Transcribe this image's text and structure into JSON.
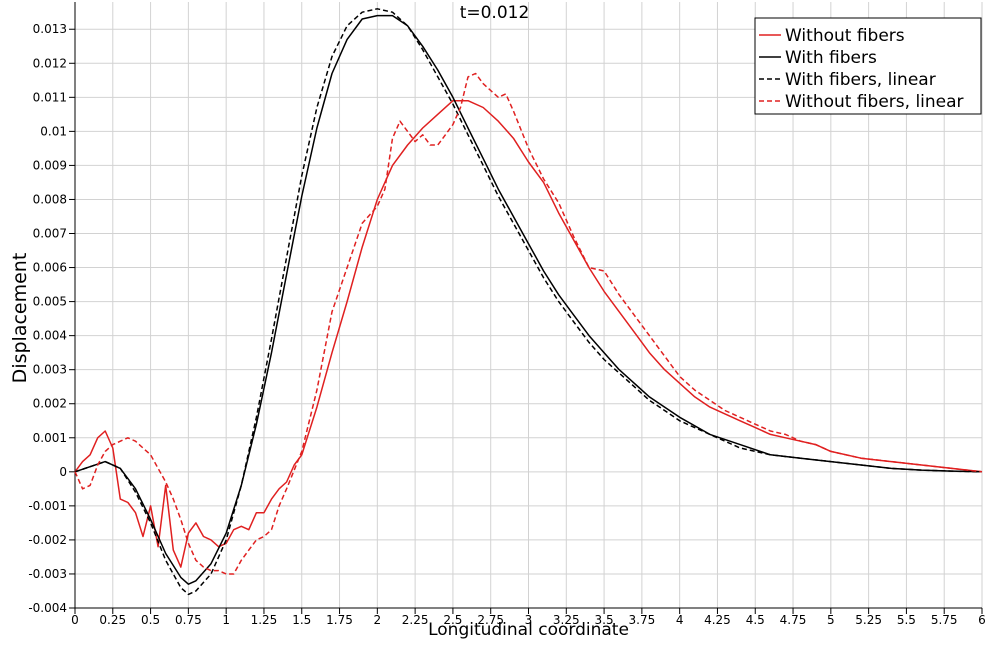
{
  "chart_data": {
    "type": "line",
    "title": "t=0.012",
    "xlabel": "Longitudinal coordinate",
    "ylabel": "Displacement",
    "xlim": [
      0,
      6
    ],
    "ylim": [
      -0.004,
      0.0138
    ],
    "grid": true,
    "legend_position": "top-right",
    "x_ticks": [
      "0",
      "0.25",
      "0.5",
      "0.75",
      "1",
      "1.25",
      "1.5",
      "1.75",
      "2",
      "2.25",
      "2.5",
      "2.75",
      "3",
      "3.25",
      "3.5",
      "3.75",
      "4",
      "4.25",
      "4.5",
      "4.75",
      "5",
      "5.25",
      "5.5",
      "5.75",
      "6"
    ],
    "y_ticks": [
      "-0.004",
      "-0.003",
      "-0.002",
      "-0.001",
      "0",
      "0.001",
      "0.002",
      "0.003",
      "0.004",
      "0.005",
      "0.006",
      "0.007",
      "0.008",
      "0.009",
      "0.01",
      "0.011",
      "0.012",
      "0.013"
    ],
    "series": [
      {
        "name": "Without fibers",
        "color": "#e02020",
        "dash": "solid",
        "x": [
          0,
          0.05,
          0.1,
          0.15,
          0.2,
          0.25,
          0.3,
          0.35,
          0.4,
          0.45,
          0.5,
          0.55,
          0.6,
          0.65,
          0.7,
          0.75,
          0.8,
          0.85,
          0.9,
          0.95,
          1,
          1.05,
          1.1,
          1.15,
          1.2,
          1.25,
          1.3,
          1.35,
          1.4,
          1.45,
          1.5,
          1.6,
          1.7,
          1.8,
          1.9,
          2,
          2.1,
          2.2,
          2.3,
          2.4,
          2.5,
          2.6,
          2.7,
          2.8,
          2.9,
          3,
          3.1,
          3.2,
          3.3,
          3.4,
          3.5,
          3.6,
          3.7,
          3.8,
          3.9,
          4,
          4.1,
          4.2,
          4.3,
          4.4,
          4.5,
          4.6,
          4.7,
          4.8,
          4.9,
          5,
          5.2,
          5.4,
          5.6,
          5.8,
          6
        ],
        "y": [
          0,
          0.0003,
          0.0005,
          0.001,
          0.0012,
          0.0007,
          -0.0008,
          -0.0009,
          -0.0012,
          -0.0019,
          -0.001,
          -0.0022,
          -0.0004,
          -0.0023,
          -0.0028,
          -0.0018,
          -0.0015,
          -0.0019,
          -0.002,
          -0.0022,
          -0.0021,
          -0.0017,
          -0.0016,
          -0.0017,
          -0.0012,
          -0.0012,
          -0.0008,
          -0.0005,
          -0.0003,
          0.0002,
          0.0005,
          0.0019,
          0.0035,
          0.005,
          0.0066,
          0.008,
          0.009,
          0.0096,
          0.0101,
          0.0105,
          0.0109,
          0.0109,
          0.0107,
          0.0103,
          0.0098,
          0.0091,
          0.0085,
          0.0076,
          0.0068,
          0.006,
          0.0053,
          0.0047,
          0.0041,
          0.0035,
          0.003,
          0.0026,
          0.0022,
          0.0019,
          0.0017,
          0.0015,
          0.0013,
          0.0011,
          0.001,
          0.0009,
          0.0008,
          0.0006,
          0.0004,
          0.0003,
          0.0002,
          0.0001,
          0
        ]
      },
      {
        "name": "With fibers",
        "color": "#000000",
        "dash": "solid",
        "x": [
          0,
          0.1,
          0.2,
          0.3,
          0.4,
          0.5,
          0.6,
          0.7,
          0.75,
          0.8,
          0.9,
          1,
          1.1,
          1.2,
          1.3,
          1.4,
          1.5,
          1.6,
          1.7,
          1.8,
          1.9,
          2,
          2.1,
          2.2,
          2.3,
          2.4,
          2.5,
          2.6,
          2.7,
          2.8,
          2.9,
          3,
          3.1,
          3.2,
          3.3,
          3.4,
          3.5,
          3.6,
          3.7,
          3.8,
          3.9,
          4,
          4.2,
          4.4,
          4.6,
          4.8,
          5,
          5.2,
          5.4,
          5.6,
          5.8,
          6
        ],
        "y": [
          0,
          0.00015,
          0.0003,
          0.0001,
          -0.0005,
          -0.0014,
          -0.0024,
          -0.0031,
          -0.0033,
          -0.0032,
          -0.0027,
          -0.0018,
          -0.0004,
          0.0014,
          0.0035,
          0.0058,
          0.0081,
          0.0101,
          0.0117,
          0.0127,
          0.0133,
          0.0134,
          0.0134,
          0.0131,
          0.0125,
          0.0118,
          0.011,
          0.0101,
          0.0092,
          0.0083,
          0.0075,
          0.0067,
          0.0059,
          0.0052,
          0.0046,
          0.004,
          0.0035,
          0.003,
          0.0026,
          0.0022,
          0.0019,
          0.0016,
          0.0011,
          0.0008,
          0.0005,
          0.0004,
          0.0003,
          0.0002,
          0.0001,
          5e-05,
          2e-05,
          0
        ]
      },
      {
        "name": "With fibers, linear",
        "color": "#000000",
        "dash": "dashed",
        "x": [
          0,
          0.1,
          0.2,
          0.3,
          0.4,
          0.5,
          0.6,
          0.7,
          0.75,
          0.8,
          0.9,
          1,
          1.1,
          1.2,
          1.3,
          1.4,
          1.5,
          1.6,
          1.7,
          1.8,
          1.9,
          2,
          2.1,
          2.2,
          2.3,
          2.4,
          2.5,
          2.6,
          2.7,
          2.8,
          2.9,
          3,
          3.1,
          3.2,
          3.3,
          3.4,
          3.5,
          3.6,
          3.7,
          3.8,
          3.9,
          4,
          4.2,
          4.4,
          4.6,
          4.8,
          5,
          5.2,
          5.4,
          5.6,
          5.8,
          6
        ],
        "y": [
          0,
          0.00015,
          0.0003,
          0.0001,
          -0.0006,
          -0.0015,
          -0.0026,
          -0.0034,
          -0.0036,
          -0.0035,
          -0.003,
          -0.002,
          -0.0004,
          0.0016,
          0.0039,
          0.0063,
          0.0087,
          0.0107,
          0.0122,
          0.0131,
          0.0135,
          0.0136,
          0.0135,
          0.0131,
          0.0124,
          0.0116,
          0.0108,
          0.0099,
          0.009,
          0.0081,
          0.0073,
          0.0065,
          0.0057,
          0.005,
          0.0044,
          0.0038,
          0.0033,
          0.0029,
          0.0025,
          0.0021,
          0.0018,
          0.0015,
          0.0011,
          0.0007,
          0.0005,
          0.0004,
          0.0003,
          0.0002,
          0.0001,
          5e-05,
          2e-05,
          0
        ]
      },
      {
        "name": "Without fibers, linear",
        "color": "#e02020",
        "dash": "dashed",
        "x": [
          0,
          0.05,
          0.1,
          0.15,
          0.2,
          0.25,
          0.3,
          0.35,
          0.4,
          0.45,
          0.5,
          0.55,
          0.6,
          0.65,
          0.7,
          0.75,
          0.8,
          0.85,
          0.9,
          0.95,
          1,
          1.05,
          1.1,
          1.15,
          1.2,
          1.25,
          1.3,
          1.35,
          1.4,
          1.5,
          1.6,
          1.7,
          1.8,
          1.9,
          2,
          2.05,
          2.1,
          2.15,
          2.2,
          2.25,
          2.3,
          2.35,
          2.4,
          2.45,
          2.5,
          2.55,
          2.6,
          2.65,
          2.7,
          2.75,
          2.8,
          2.85,
          2.9,
          3,
          3.1,
          3.2,
          3.3,
          3.4,
          3.5,
          3.6,
          3.7,
          3.8,
          3.9,
          4,
          4.1,
          4.2,
          4.3,
          4.4,
          4.5,
          4.6,
          4.7,
          4.8,
          4.9,
          5,
          5.2,
          5.4,
          5.6,
          5.8,
          6
        ],
        "y": [
          0,
          -0.0005,
          -0.0004,
          0.0002,
          0.0006,
          0.0008,
          0.0009,
          0.001,
          0.0009,
          0.0007,
          0.0005,
          0.0001,
          -0.0003,
          -0.0008,
          -0.0014,
          -0.0021,
          -0.0026,
          -0.0028,
          -0.0029,
          -0.0029,
          -0.003,
          -0.003,
          -0.0026,
          -0.0023,
          -0.002,
          -0.0019,
          -0.0017,
          -0.001,
          -0.0005,
          0.0006,
          0.0024,
          0.0047,
          0.006,
          0.0073,
          0.0078,
          0.0083,
          0.0098,
          0.0103,
          0.01,
          0.0097,
          0.0099,
          0.0096,
          0.0096,
          0.0099,
          0.0102,
          0.0107,
          0.0116,
          0.0117,
          0.0114,
          0.0112,
          0.011,
          0.0111,
          0.0106,
          0.0095,
          0.0086,
          0.0079,
          0.0069,
          0.006,
          0.0059,
          0.0052,
          0.0046,
          0.004,
          0.0034,
          0.0028,
          0.0024,
          0.0021,
          0.0018,
          0.0016,
          0.0014,
          0.0012,
          0.0011,
          0.0009,
          0.0008,
          0.0006,
          0.0004,
          0.0003,
          0.0002,
          0.0001,
          0
        ]
      }
    ]
  }
}
